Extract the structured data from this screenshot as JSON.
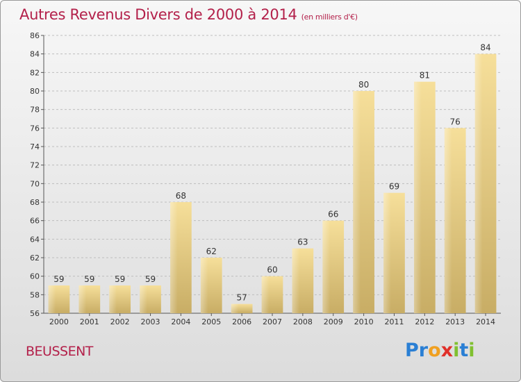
{
  "title": "Autres Revenus Divers de 2000 à 2014",
  "title_unit": "(en milliers d'€)",
  "commune": "BEUSSENT",
  "brand": {
    "letters": [
      "P",
      "r",
      "o",
      "x",
      "i",
      "t",
      "i"
    ],
    "colors": [
      "#2a7fd4",
      "#2a7fd4",
      "#f0a020",
      "#e0302a",
      "#80c030",
      "#2a7fd4",
      "#80c030"
    ]
  },
  "colors": {
    "title": "#b3204a",
    "bar_light": "#f6df9a",
    "bar_dark": "#c8ad65",
    "grid": "#bdbdbd"
  },
  "chart_data": {
    "type": "bar",
    "title": "Autres Revenus Divers de 2000 à 2014",
    "xlabel": "",
    "ylabel": "",
    "categories": [
      "2000",
      "2001",
      "2002",
      "2003",
      "2004",
      "2005",
      "2006",
      "2007",
      "2008",
      "2009",
      "2010",
      "2011",
      "2012",
      "2013",
      "2014"
    ],
    "values": [
      59,
      59,
      59,
      59,
      68,
      62,
      57,
      60,
      63,
      66,
      80,
      69,
      81,
      76,
      84
    ],
    "ylim": [
      56,
      86
    ],
    "yticks": [
      56,
      58,
      60,
      62,
      64,
      66,
      68,
      70,
      72,
      74,
      76,
      78,
      80,
      82,
      84,
      86
    ],
    "grid": true,
    "data_labels": true
  }
}
